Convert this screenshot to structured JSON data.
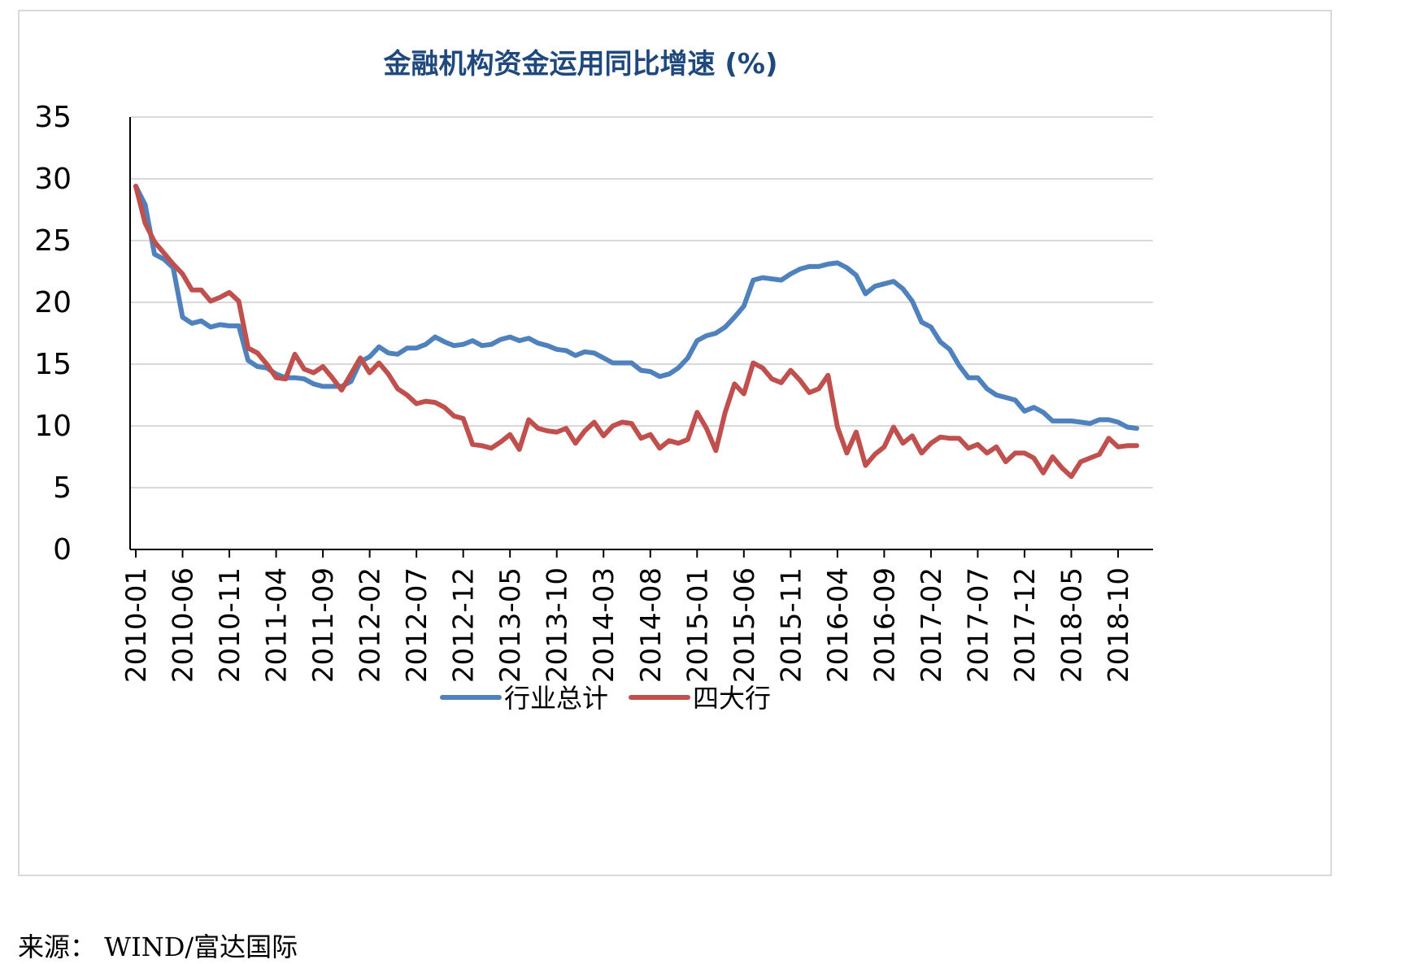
{
  "source": "来源： WIND/富达国际",
  "chart_data": {
    "type": "line",
    "title": "金融机构资金运用同比增速 (%)",
    "xlabel": "",
    "ylabel": "",
    "ylim": [
      0,
      35
    ],
    "yticks": [
      0,
      5,
      10,
      15,
      20,
      25,
      30,
      35
    ],
    "grid": true,
    "legend_position": "bottom",
    "x_tick_labels": [
      "2010-01",
      "2010-06",
      "2010-11",
      "2011-04",
      "2011-09",
      "2012-02",
      "2012-07",
      "2012-12",
      "2013-05",
      "2013-10",
      "2014-03",
      "2014-08",
      "2015-01",
      "2015-06",
      "2015-11",
      "2016-04",
      "2016-09",
      "2017-02",
      "2017-07",
      "2017-12",
      "2018-05",
      "2018-10"
    ],
    "x": [
      "2010-01",
      "2010-02",
      "2010-03",
      "2010-04",
      "2010-05",
      "2010-06",
      "2010-07",
      "2010-08",
      "2010-09",
      "2010-10",
      "2010-11",
      "2010-12",
      "2011-01",
      "2011-02",
      "2011-03",
      "2011-04",
      "2011-05",
      "2011-06",
      "2011-07",
      "2011-08",
      "2011-09",
      "2011-10",
      "2011-11",
      "2011-12",
      "2012-01",
      "2012-02",
      "2012-03",
      "2012-04",
      "2012-05",
      "2012-06",
      "2012-07",
      "2012-08",
      "2012-09",
      "2012-10",
      "2012-11",
      "2012-12",
      "2013-01",
      "2013-02",
      "2013-03",
      "2013-04",
      "2013-05",
      "2013-06",
      "2013-07",
      "2013-08",
      "2013-09",
      "2013-10",
      "2013-11",
      "2013-12",
      "2014-01",
      "2014-02",
      "2014-03",
      "2014-04",
      "2014-05",
      "2014-06",
      "2014-07",
      "2014-08",
      "2014-09",
      "2014-10",
      "2014-11",
      "2014-12",
      "2015-01",
      "2015-02",
      "2015-03",
      "2015-04",
      "2015-05",
      "2015-06",
      "2015-07",
      "2015-08",
      "2015-09",
      "2015-10",
      "2015-11",
      "2015-12",
      "2016-01",
      "2016-02",
      "2016-03",
      "2016-04",
      "2016-05",
      "2016-06",
      "2016-07",
      "2016-08",
      "2016-09",
      "2016-10",
      "2016-11",
      "2016-12",
      "2017-01",
      "2017-02",
      "2017-03",
      "2017-04",
      "2017-05",
      "2017-06",
      "2017-07",
      "2017-08",
      "2017-09",
      "2017-10",
      "2017-11",
      "2017-12",
      "2018-01",
      "2018-02",
      "2018-03",
      "2018-04",
      "2018-05",
      "2018-06",
      "2018-07",
      "2018-08",
      "2018-09",
      "2018-10",
      "2018-11",
      "2018-12"
    ],
    "series": [
      {
        "name": "行业总计",
        "color": "#4f81bd",
        "values": [
          29.4,
          27.9,
          23.9,
          23.5,
          22.8,
          18.8,
          18.3,
          18.5,
          18.0,
          18.2,
          18.1,
          18.1,
          15.3,
          14.8,
          14.7,
          14.2,
          13.9,
          13.9,
          13.8,
          13.4,
          13.2,
          13.2,
          13.2,
          13.6,
          15.2,
          15.6,
          16.4,
          15.9,
          15.8,
          16.3,
          16.3,
          16.6,
          17.2,
          16.8,
          16.5,
          16.6,
          16.9,
          16.5,
          16.6,
          17.0,
          17.2,
          16.9,
          17.1,
          16.7,
          16.5,
          16.2,
          16.1,
          15.7,
          16.0,
          15.9,
          15.5,
          15.1,
          15.1,
          15.1,
          14.5,
          14.4,
          14.0,
          14.2,
          14.7,
          15.5,
          16.9,
          17.3,
          17.5,
          18.0,
          18.8,
          19.7,
          21.8,
          22.0,
          21.9,
          21.8,
          22.3,
          22.7,
          22.9,
          22.9,
          23.1,
          23.2,
          22.8,
          22.2,
          20.7,
          21.3,
          21.5,
          21.7,
          21.1,
          20.1,
          18.4,
          18.0,
          16.8,
          16.2,
          14.9,
          13.9,
          13.9,
          13.0,
          12.5,
          12.3,
          12.1,
          11.2,
          11.5,
          11.1,
          10.4,
          10.4,
          10.4,
          10.3,
          10.2,
          10.5,
          10.5,
          10.3,
          9.9,
          9.8
        ]
      },
      {
        "name": "四大行",
        "color": "#c0504d",
        "values": [
          29.4,
          26.4,
          24.9,
          24.0,
          23.1,
          22.3,
          21.0,
          21.0,
          20.1,
          20.4,
          20.8,
          20.1,
          16.3,
          15.9,
          15.0,
          13.9,
          13.8,
          15.8,
          14.6,
          14.3,
          14.8,
          13.9,
          12.9,
          14.2,
          15.5,
          14.3,
          15.1,
          14.2,
          13.0,
          12.5,
          11.8,
          12.0,
          11.9,
          11.5,
          10.8,
          10.6,
          8.5,
          8.4,
          8.2,
          8.7,
          9.3,
          8.1,
          10.5,
          9.8,
          9.6,
          9.5,
          9.8,
          8.6,
          9.6,
          10.3,
          9.2,
          10.0,
          10.3,
          10.2,
          9.0,
          9.3,
          8.2,
          8.8,
          8.6,
          8.9,
          11.1,
          9.8,
          8.0,
          11.1,
          13.4,
          12.6,
          15.1,
          14.7,
          13.8,
          13.5,
          14.5,
          13.7,
          12.7,
          13.0,
          14.1,
          9.9,
          7.8,
          9.5,
          6.8,
          7.7,
          8.3,
          9.9,
          8.6,
          9.2,
          7.8,
          8.6,
          9.1,
          9.0,
          9.0,
          8.2,
          8.5,
          7.8,
          8.3,
          7.1,
          7.8,
          7.8,
          7.4,
          6.2,
          7.5,
          6.6,
          5.9,
          7.1,
          7.4,
          7.7,
          9.0,
          8.3,
          8.4,
          8.4
        ]
      }
    ]
  }
}
